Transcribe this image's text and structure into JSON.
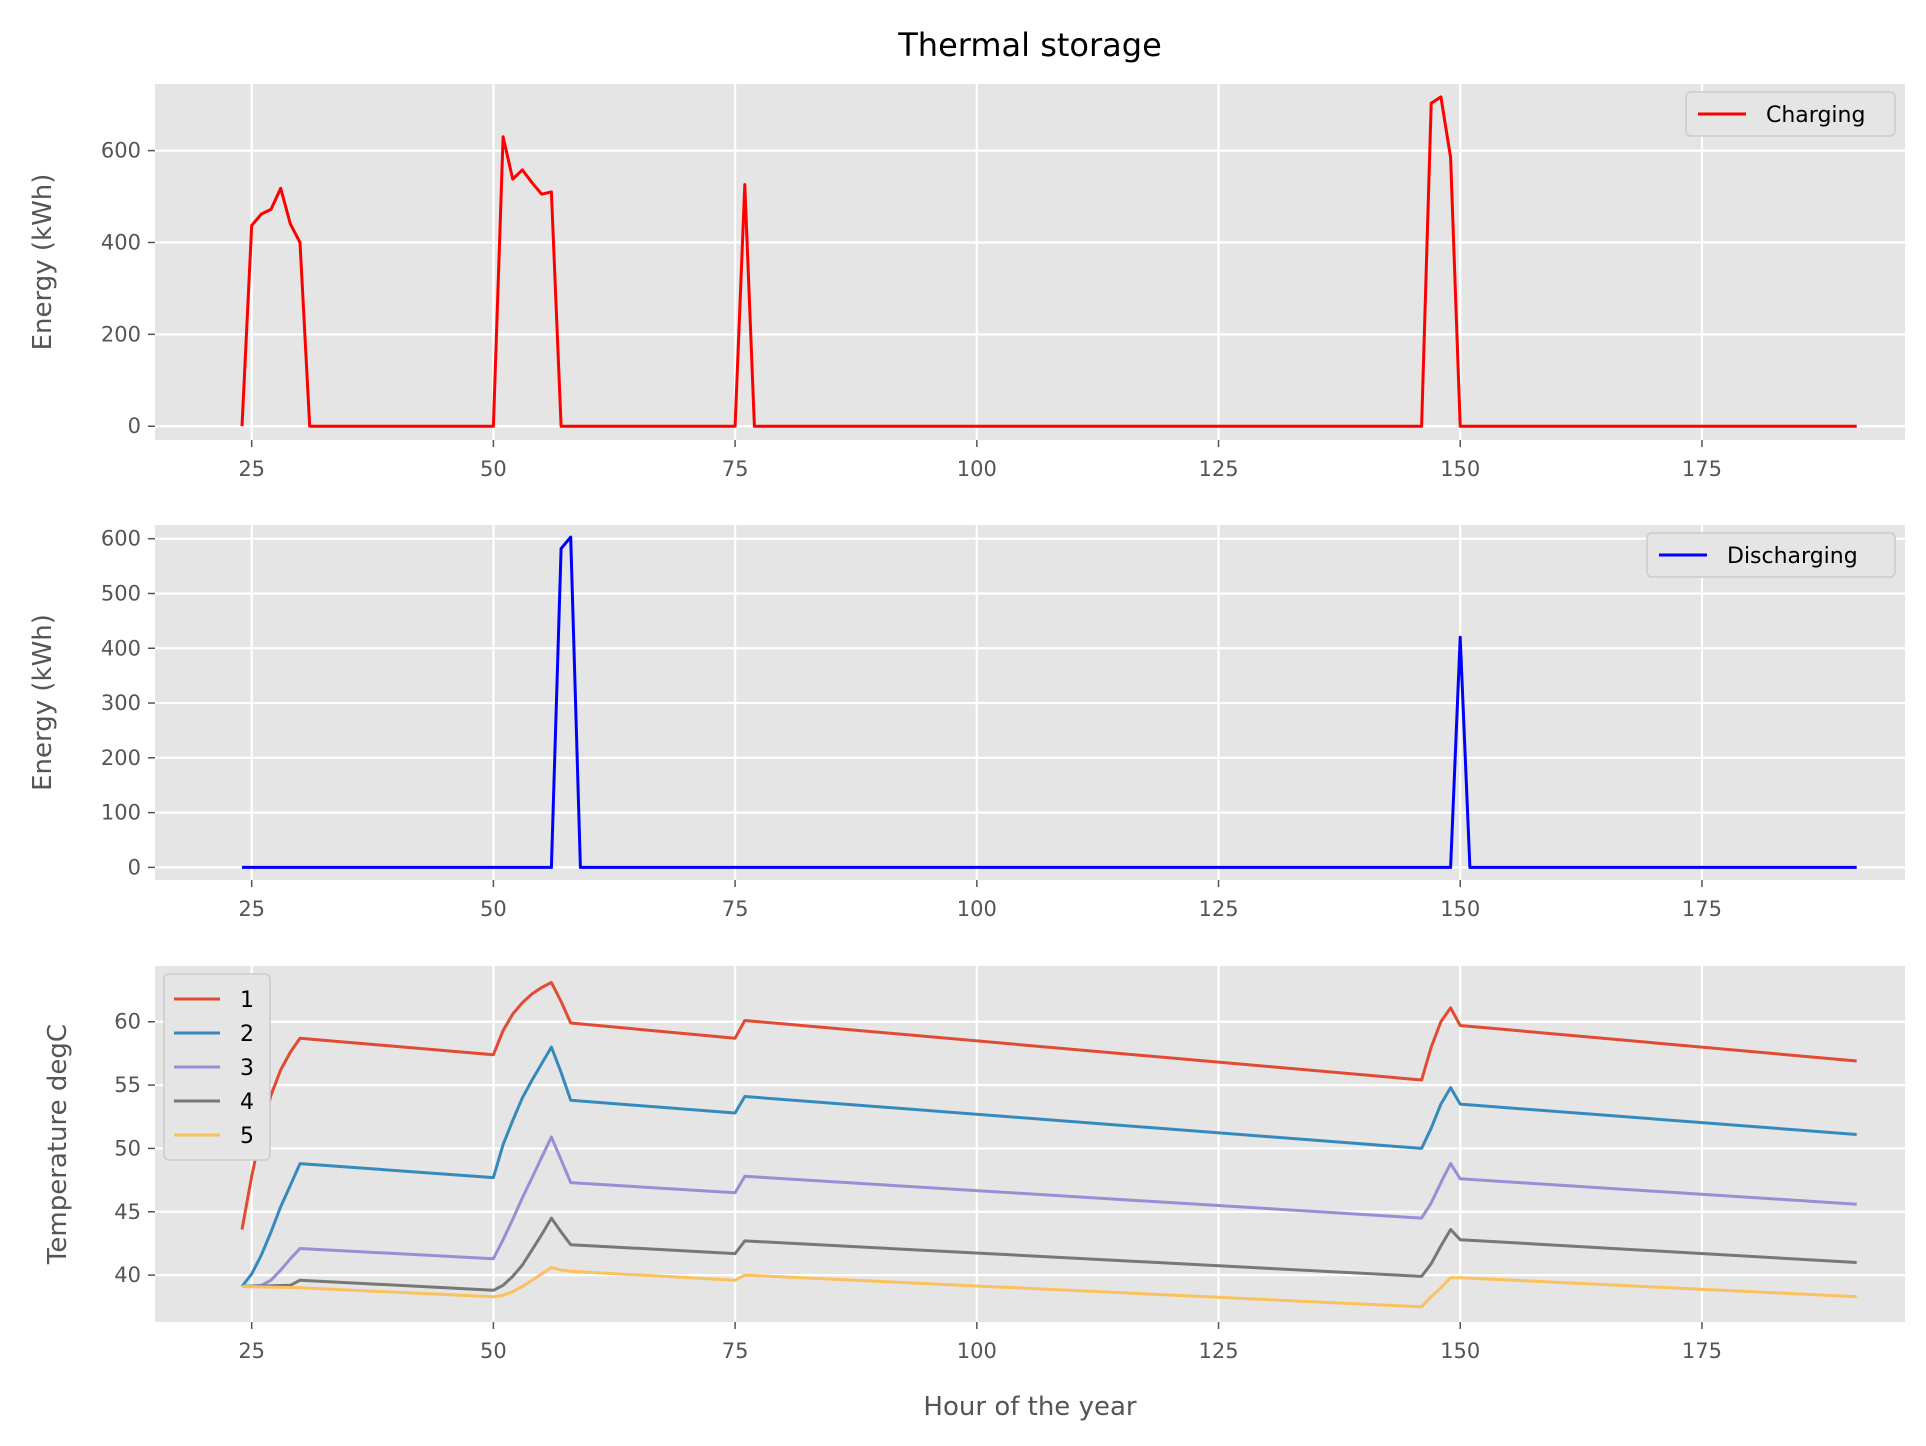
{
  "chart_data": {
    "title": "Thermal storage",
    "xlabel": "Hour of the year",
    "xlim": [
      15,
      196
    ],
    "xticks": [
      "25",
      "50",
      "75",
      "100",
      "125",
      "150",
      "175"
    ],
    "grid": true,
    "panels": [
      {
        "type": "line",
        "ylabel": "Energy (kWh)",
        "ylim": [
          -30,
          745
        ],
        "yticks": [
          "0",
          "200",
          "400",
          "600"
        ],
        "legend": "top-right",
        "series": [
          {
            "name": "Charging",
            "color": "#ff0000",
            "points": [
              [
                24,
                0
              ],
              [
                25,
                437
              ],
              [
                26,
                462
              ],
              [
                27,
                472
              ],
              [
                28,
                518
              ],
              [
                29,
                440
              ],
              [
                30,
                400
              ],
              [
                31,
                0
              ],
              [
                50,
                0
              ],
              [
                51,
                630
              ],
              [
                52,
                538
              ],
              [
                53,
                558
              ],
              [
                54,
                530
              ],
              [
                55,
                505
              ],
              [
                56,
                510
              ],
              [
                57,
                0
              ],
              [
                75,
                0
              ],
              [
                76,
                526
              ],
              [
                77,
                0
              ],
              [
                146,
                0
              ],
              [
                147,
                703
              ],
              [
                148,
                717
              ],
              [
                149,
                585
              ],
              [
                150,
                0
              ],
              [
                191,
                0
              ]
            ]
          }
        ]
      },
      {
        "type": "line",
        "ylabel": "Energy (kWh)",
        "ylim": [
          -23,
          625
        ],
        "yticks": [
          "0",
          "100",
          "200",
          "300",
          "400",
          "500",
          "600"
        ],
        "legend": "top-right",
        "series": [
          {
            "name": "Discharging",
            "color": "#0000ff",
            "points": [
              [
                24,
                0
              ],
              [
                56,
                0
              ],
              [
                57,
                582
              ],
              [
                58,
                603
              ],
              [
                59,
                0
              ],
              [
                149,
                0
              ],
              [
                150,
                420
              ],
              [
                151,
                0
              ],
              [
                191,
                0
              ]
            ]
          }
        ]
      },
      {
        "type": "line",
        "ylabel": "Temperature degC",
        "ylim": [
          36.3,
          64.4
        ],
        "yticks": [
          "40",
          "45",
          "50",
          "55",
          "60"
        ],
        "legend": "top-left",
        "series": [
          {
            "name": "1",
            "color": "#e24a33",
            "points": [
              [
                24,
                43.6
              ],
              [
                25,
                47.8
              ],
              [
                26,
                51.4
              ],
              [
                27,
                54.2
              ],
              [
                28,
                56.2
              ],
              [
                29,
                57.6
              ],
              [
                30,
                58.7
              ],
              [
                50,
                57.4
              ],
              [
                51,
                59.3
              ],
              [
                52,
                60.6
              ],
              [
                53,
                61.5
              ],
              [
                54,
                62.2
              ],
              [
                55,
                62.7
              ],
              [
                56,
                63.1
              ],
              [
                57,
                61.6
              ],
              [
                58,
                59.9
              ],
              [
                75,
                58.7
              ],
              [
                76,
                60.1
              ],
              [
                146,
                55.4
              ],
              [
                147,
                58
              ],
              [
                148,
                60
              ],
              [
                149,
                61.1
              ],
              [
                150,
                59.7
              ],
              [
                191,
                56.9
              ]
            ]
          },
          {
            "name": "2",
            "color": "#348abd",
            "points": [
              [
                24,
                39.1
              ],
              [
                25,
                40.1
              ],
              [
                26,
                41.6
              ],
              [
                27,
                43.4
              ],
              [
                28,
                45.4
              ],
              [
                29,
                47.1
              ],
              [
                30,
                48.8
              ],
              [
                50,
                47.7
              ],
              [
                51,
                50.3
              ],
              [
                52,
                52.2
              ],
              [
                53,
                54
              ],
              [
                54,
                55.4
              ],
              [
                55,
                56.7
              ],
              [
                56,
                58
              ],
              [
                57,
                56
              ],
              [
                58,
                53.8
              ],
              [
                75,
                52.8
              ],
              [
                76,
                54.1
              ],
              [
                146,
                50
              ],
              [
                147,
                51.6
              ],
              [
                148,
                53.5
              ],
              [
                149,
                54.8
              ],
              [
                150,
                53.5
              ],
              [
                191,
                51.1
              ]
            ]
          },
          {
            "name": "3",
            "color": "#988ed5",
            "points": [
              [
                24,
                39.1
              ],
              [
                26,
                39.2
              ],
              [
                27,
                39.6
              ],
              [
                28,
                40.4
              ],
              [
                29,
                41.3
              ],
              [
                30,
                42.1
              ],
              [
                50,
                41.3
              ],
              [
                51,
                42.8
              ],
              [
                52,
                44.4
              ],
              [
                53,
                46.1
              ],
              [
                54,
                47.7
              ],
              [
                55,
                49.3
              ],
              [
                56,
                50.9
              ],
              [
                57,
                49.1
              ],
              [
                58,
                47.3
              ],
              [
                75,
                46.5
              ],
              [
                76,
                47.8
              ],
              [
                146,
                44.5
              ],
              [
                147,
                45.7
              ],
              [
                148,
                47.3
              ],
              [
                149,
                48.8
              ],
              [
                150,
                47.6
              ],
              [
                191,
                45.6
              ]
            ]
          },
          {
            "name": "4",
            "color": "#777777",
            "points": [
              [
                24,
                39.1
              ],
              [
                29,
                39.2
              ],
              [
                30,
                39.6
              ],
              [
                50,
                38.8
              ],
              [
                51,
                39.2
              ],
              [
                52,
                39.9
              ],
              [
                53,
                40.8
              ],
              [
                54,
                42
              ],
              [
                55,
                43.2
              ],
              [
                56,
                44.5
              ],
              [
                57,
                43.4
              ],
              [
                58,
                42.4
              ],
              [
                75,
                41.7
              ],
              [
                76,
                42.7
              ],
              [
                146,
                39.9
              ],
              [
                147,
                40.9
              ],
              [
                148,
                42.3
              ],
              [
                149,
                43.6
              ],
              [
                150,
                42.8
              ],
              [
                191,
                41
              ]
            ]
          },
          {
            "name": "5",
            "color": "#fbc15e",
            "points": [
              [
                24,
                39.1
              ],
              [
                30,
                39
              ],
              [
                50,
                38.3
              ],
              [
                51,
                38.4
              ],
              [
                52,
                38.7
              ],
              [
                53,
                39.1
              ],
              [
                54,
                39.6
              ],
              [
                55,
                40.1
              ],
              [
                56,
                40.6
              ],
              [
                57,
                40.4
              ],
              [
                58,
                40.3
              ],
              [
                75,
                39.6
              ],
              [
                76,
                40
              ],
              [
                146,
                37.5
              ],
              [
                147,
                38.3
              ],
              [
                148,
                39
              ],
              [
                149,
                39.8
              ],
              [
                150,
                39.8
              ],
              [
                191,
                38.3
              ]
            ]
          }
        ]
      }
    ]
  }
}
